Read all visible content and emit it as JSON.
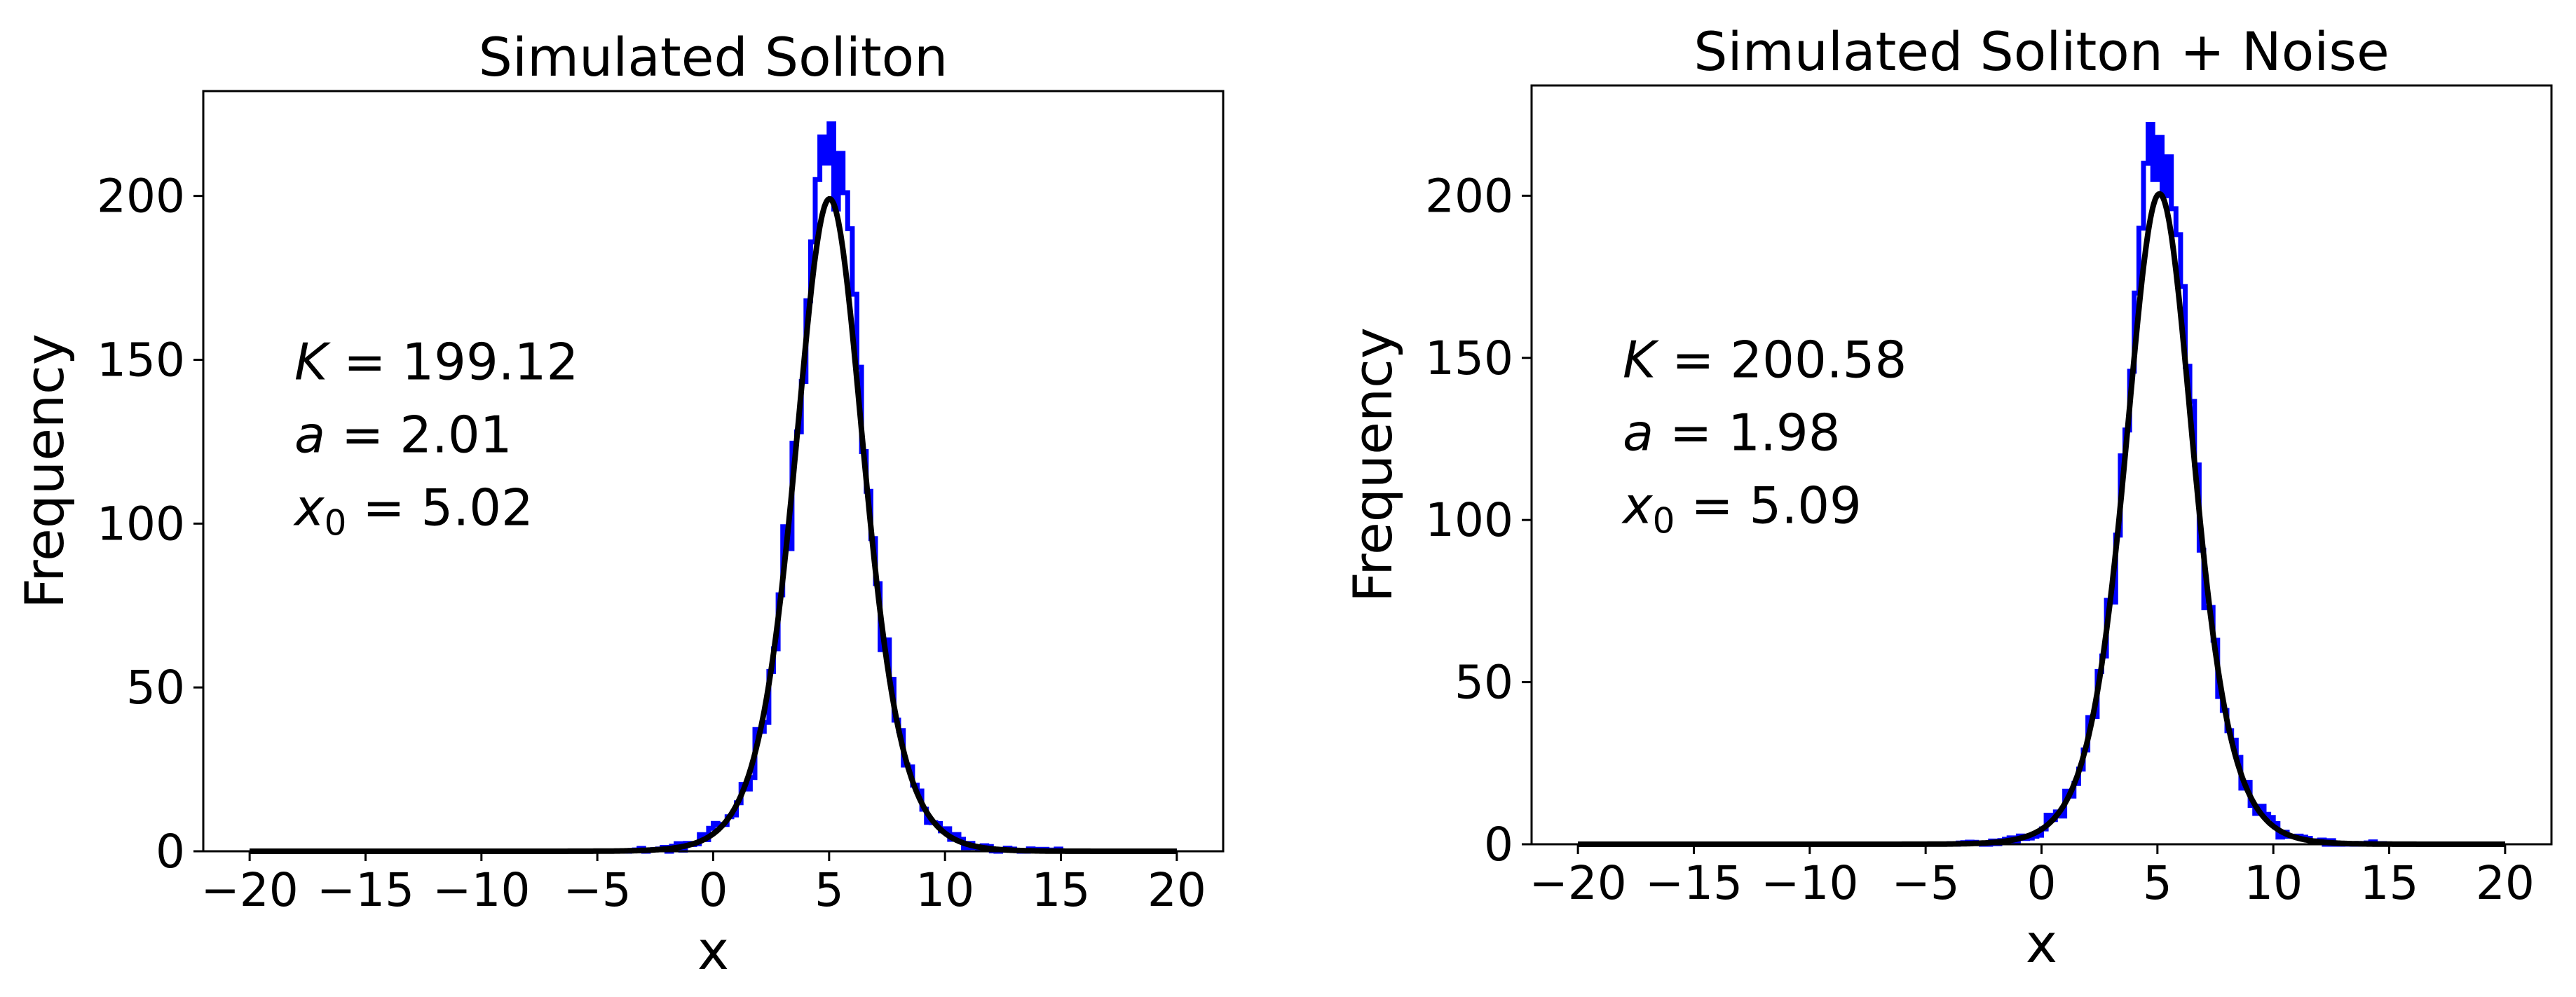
{
  "chart_data": [
    {
      "type": "line",
      "title": "Simulated Soliton",
      "xlabel": "x",
      "ylabel": "Frequency",
      "xlim": [
        -22,
        22
      ],
      "ylim": [
        0,
        232
      ],
      "x_ticks": [
        "−20",
        "−15",
        "−10",
        "−5",
        "0",
        "5",
        "10",
        "15",
        "20"
      ],
      "y_ticks": [
        "0",
        "50",
        "100",
        "150",
        "200"
      ],
      "grid": false,
      "annotation": {
        "lines": [
          {
            "var": "K",
            "sub": "",
            "value": " = 199.12"
          },
          {
            "var": "a",
            "sub": "",
            "value": " = 2.01"
          },
          {
            "var": "x",
            "sub": "0",
            "value": " = 5.02"
          }
        ]
      },
      "fit": {
        "K": 199.12,
        "a": 2.01,
        "x0": 5.02
      },
      "series": [
        {
          "style": "histogram-step",
          "color": "#0000ff",
          "bin_width": 0.2,
          "x_start": -4,
          "x_end": 15,
          "x_peak_values": [
            4.0,
            4.2,
            4.4,
            4.6,
            4.8,
            5.0,
            5.2,
            5.4,
            5.6,
            5.8,
            6.0
          ],
          "y_peak_values": [
            168,
            186,
            205,
            218,
            210,
            222,
            196,
            213,
            201,
            190,
            170
          ]
        },
        {
          "style": "fit-curve",
          "color": "#000000"
        }
      ],
      "colors": {
        "histogram": "#0000ff",
        "fit": "#000000"
      }
    },
    {
      "type": "line",
      "title": "Simulated Soliton + Noise",
      "xlabel": "x",
      "ylabel": "Frequency",
      "xlim": [
        -22,
        22
      ],
      "ylim": [
        0,
        234
      ],
      "x_ticks": [
        "−20",
        "−15",
        "−10",
        "−5",
        "0",
        "5",
        "10",
        "15",
        "20"
      ],
      "y_ticks": [
        "0",
        "50",
        "100",
        "150",
        "200"
      ],
      "grid": false,
      "annotation": {
        "lines": [
          {
            "var": "K",
            "sub": "",
            "value": " = 200.58"
          },
          {
            "var": "a",
            "sub": "",
            "value": " = 1.98"
          },
          {
            "var": "x",
            "sub": "0",
            "value": " = 5.09"
          }
        ]
      },
      "fit": {
        "K": 200.58,
        "a": 1.98,
        "x0": 5.09
      },
      "series": [
        {
          "style": "histogram-step",
          "color": "#0000ff",
          "bin_width": 0.2,
          "x_start": -4,
          "x_end": 15,
          "x_peak_values": [
            4.0,
            4.2,
            4.4,
            4.6,
            4.8,
            5.0,
            5.2,
            5.4,
            5.6,
            5.8,
            6.0
          ],
          "y_peak_values": [
            170,
            190,
            210,
            222,
            205,
            218,
            200,
            212,
            196,
            188,
            172
          ]
        },
        {
          "style": "fit-curve",
          "color": "#000000"
        }
      ],
      "colors": {
        "histogram": "#0000ff",
        "fit": "#000000"
      }
    }
  ]
}
